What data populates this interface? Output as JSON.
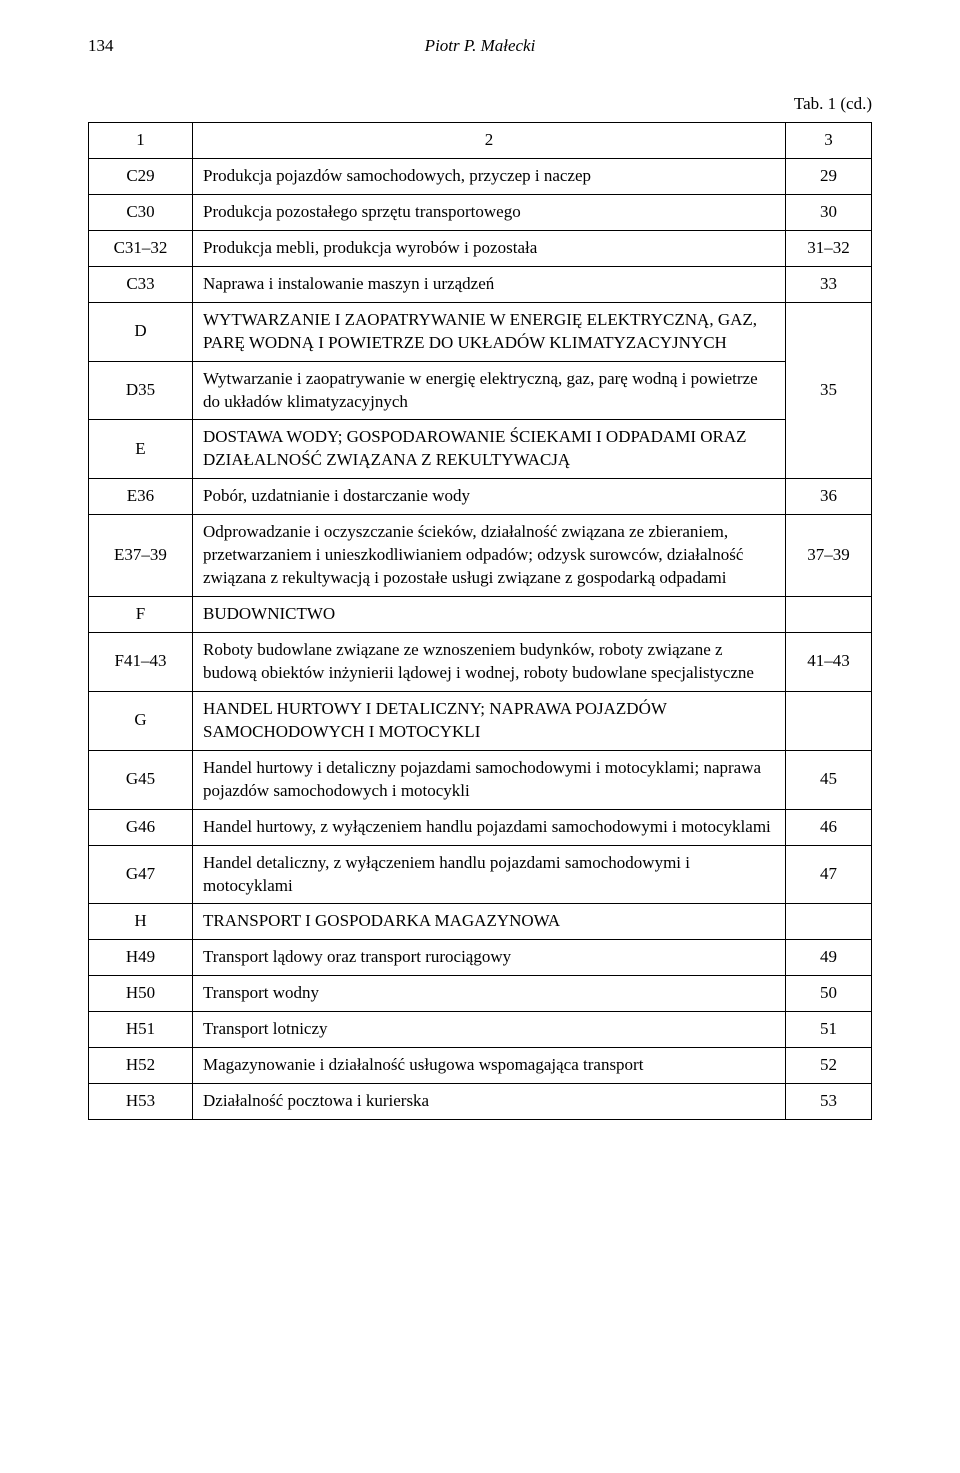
{
  "page_number": "134",
  "author": "Piotr P. Małecki",
  "table_caption": "Tab. 1 (cd.)",
  "header_row": {
    "c1": "1",
    "c2": "2",
    "c3": "3"
  },
  "rows": [
    {
      "code": "C29",
      "desc": "Produkcja pojazdów samochodowych, przyczep i naczep",
      "val": "29"
    },
    {
      "code": "C30",
      "desc": "Produkcja pozostałego sprzętu transportowego",
      "val": "30"
    },
    {
      "code": "C31–32",
      "desc": "Produkcja mebli, produkcja wyrobów i pozostała",
      "val": "31–32"
    },
    {
      "code": "C33",
      "desc": "Naprawa i instalowanie maszyn i urządzeń",
      "val": "33"
    },
    {
      "code": "D",
      "desc": "WYTWARZANIE I ZAOPATRYWANIE W ENERGIĘ ELEKTRYCZNĄ, GAZ, PARĘ WODNĄ I POWIETRZE DO UKŁADÓW KLIMATYZACYJNYCH",
      "val": "",
      "merge_start": true
    },
    {
      "code": "D35",
      "desc": "Wytwarzanie i zaopatrywanie w energię elektryczną, gaz, parę wodną i powietrze do układów klimatyzacyjnych",
      "val": "35"
    },
    {
      "code": "E",
      "desc": "DOSTAWA WODY; GOSPODAROWANIE ŚCIEKAMI I ODPADAMI ORAZ DZIAŁALNOŚĆ ZWIĄZANA Z REKULTYWACJĄ",
      "val": "",
      "merge_end": true
    },
    {
      "code": "E36",
      "desc": "Pobór, uzdatnianie i dostarczanie wody",
      "val": "36"
    },
    {
      "code": "E37–39",
      "desc": "Odprowadzanie i oczyszczanie ścieków, działalność związana ze zbieraniem, przetwarzaniem i unieszkodliwianiem odpadów; odzysk surowców, działalność związana z rekultywacją i pozostałe usługi związane z gospodarką odpadami",
      "val": "37–39"
    },
    {
      "code": "F",
      "desc": "BUDOWNICTWO",
      "val": "",
      "blank_val": true
    },
    {
      "code": "F41–43",
      "desc": "Roboty budowlane związane ze wznoszeniem budynków, roboty związane z budową obiektów inżynierii lądowej i wodnej, roboty budowlane specjalistyczne",
      "val": "41–43"
    },
    {
      "code": "G",
      "desc": "HANDEL HURTOWY I DETALICZNY; NAPRAWA POJAZDÓW SAMOCHODOWYCH I MOTOCYKLI",
      "val": "",
      "blank_val": true
    },
    {
      "code": "G45",
      "desc": "Handel hurtowy i detaliczny pojazdami samochodowymi i motocyklami; naprawa pojazdów samochodowych i motocykli",
      "val": "45"
    },
    {
      "code": "G46",
      "desc": "Handel hurtowy, z wyłączeniem handlu pojazdami samochodowymi i motocyklami",
      "val": "46"
    },
    {
      "code": "G47",
      "desc": "Handel detaliczny, z wyłączeniem handlu pojazdami samochodowymi i motocyklami",
      "val": "47"
    },
    {
      "code": "H",
      "desc": "TRANSPORT I GOSPODARKA MAGAZYNOWA",
      "val": "",
      "blank_val": true
    },
    {
      "code": "H49",
      "desc": "Transport lądowy oraz transport rurociągowy",
      "val": "49"
    },
    {
      "code": "H50",
      "desc": "Transport wodny",
      "val": "50"
    },
    {
      "code": "H51",
      "desc": "Transport lotniczy",
      "val": "51"
    },
    {
      "code": "H52",
      "desc": "Magazynowanie i działalność usługowa wspomagająca transport",
      "val": "52"
    },
    {
      "code": "H53",
      "desc": "Działalność pocztowa i kurierska",
      "val": "53"
    }
  ],
  "merged_val": "35"
}
